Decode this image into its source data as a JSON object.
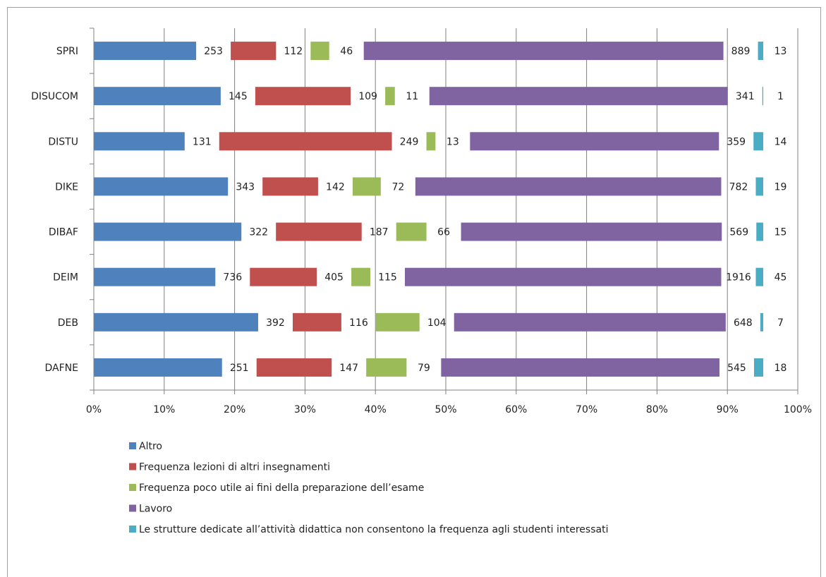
{
  "chart_data": {
    "type": "bar",
    "orientation": "horizontal",
    "stacked": "percent",
    "categories": [
      "SPRI",
      "DISUCOM",
      "DISTU",
      "DIKE",
      "DIBAF",
      "DEIM",
      "DEB",
      "DAFNE"
    ],
    "series": [
      {
        "name": "Altro",
        "color": "#4f81bd",
        "values": [
          253,
          145,
          131,
          343,
          322,
          736,
          392,
          251
        ]
      },
      {
        "name": "Frequenza lezioni di altri insegnamenti",
        "color": "#c0504d",
        "values": [
          112,
          109,
          249,
          142,
          187,
          405,
          116,
          147
        ]
      },
      {
        "name": "Frequenza poco utile ai fini della preparazione dell’esame",
        "color": "#9bbb59",
        "values": [
          46,
          11,
          13,
          72,
          66,
          115,
          104,
          79
        ]
      },
      {
        "name": "Lavoro",
        "color": "#8064a2",
        "values": [
          889,
          341,
          359,
          782,
          569,
          1916,
          648,
          545
        ]
      },
      {
        "name": "Le strutture dedicate all’attività didattica non consentono la frequenza agli studenti interessati",
        "color": "#4bacc6",
        "values": [
          13,
          1,
          14,
          19,
          15,
          45,
          7,
          18
        ]
      }
    ],
    "x_ticks": [
      "0%",
      "10%",
      "20%",
      "30%",
      "40%",
      "50%",
      "60%",
      "70%",
      "80%",
      "90%",
      "100%"
    ],
    "xlim": [
      0,
      100
    ],
    "grid": "vertical",
    "legend_position": "bottom"
  }
}
